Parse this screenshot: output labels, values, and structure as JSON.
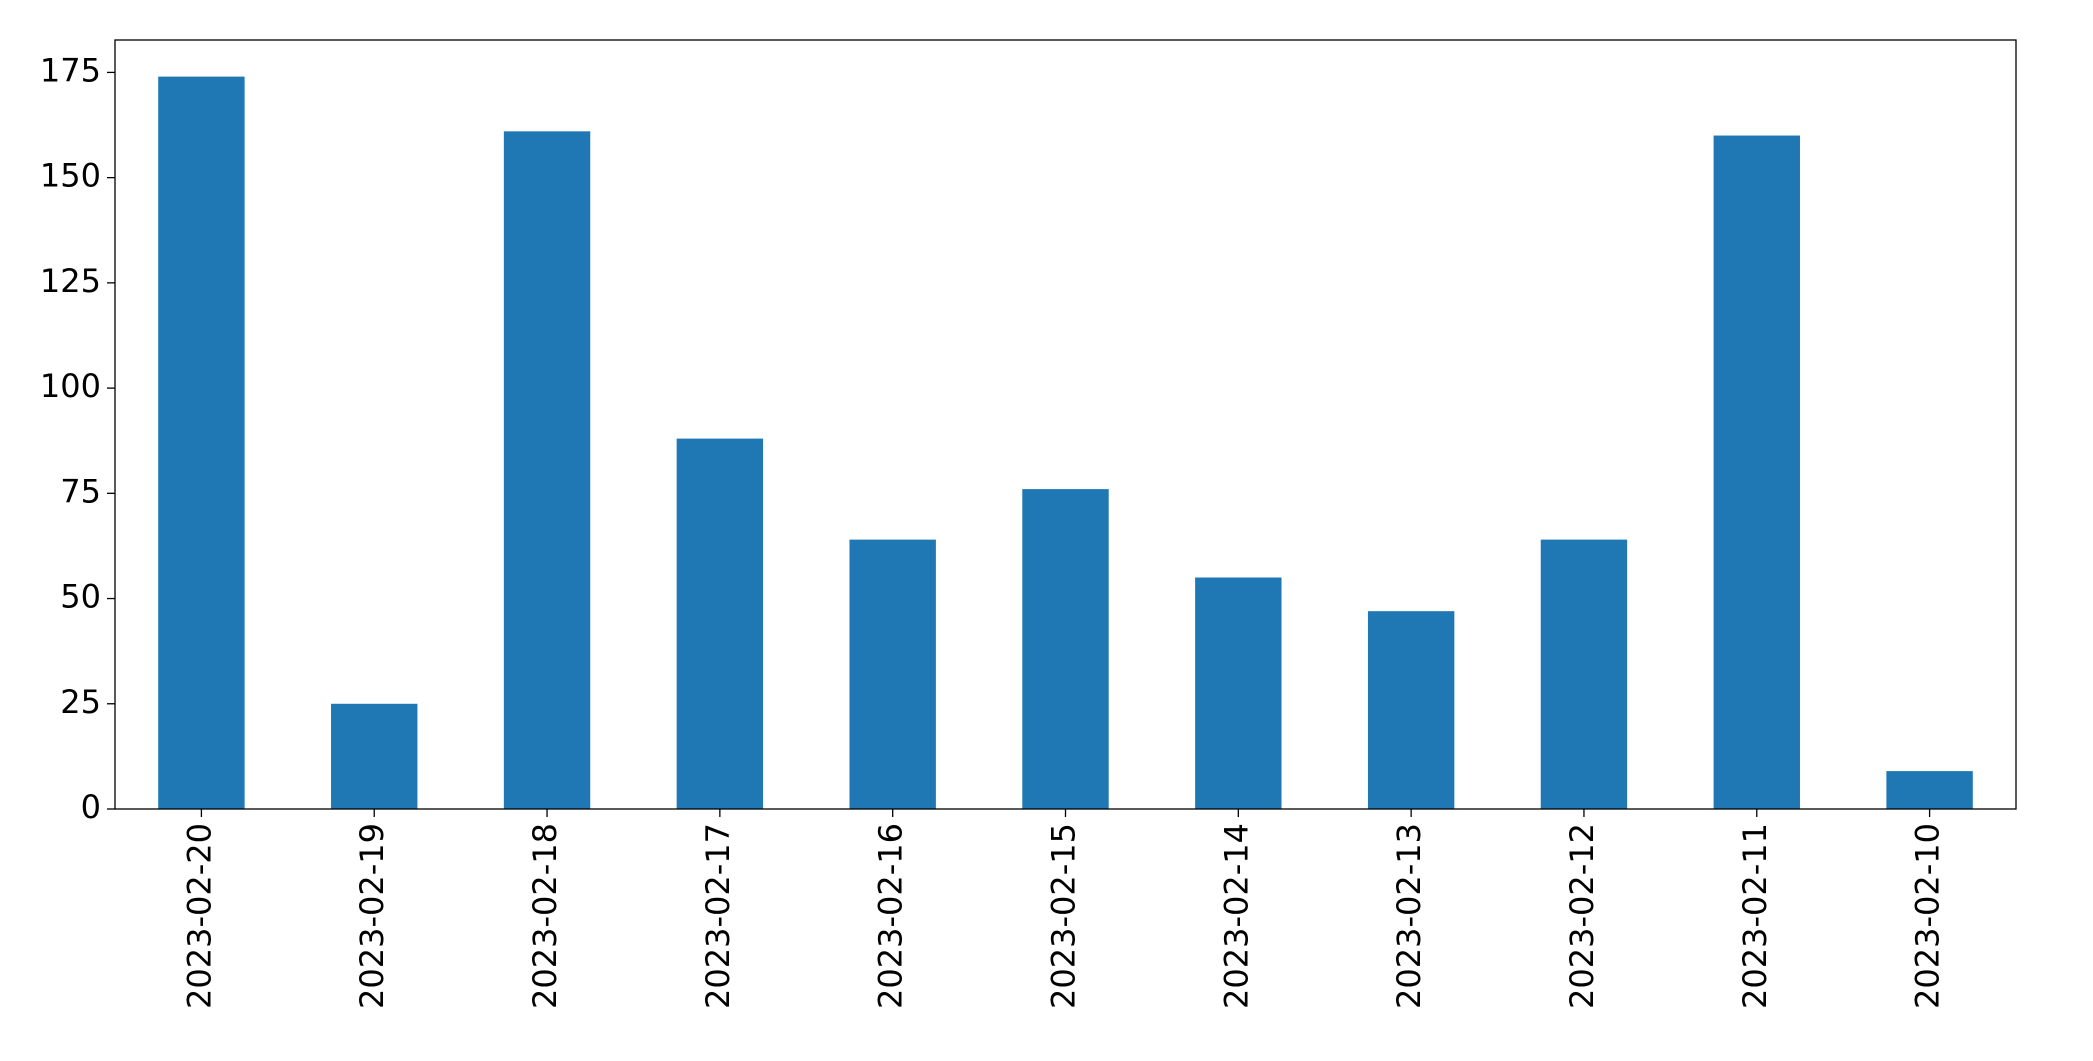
{
  "chart_data": {
    "type": "bar",
    "categories": [
      "2023-02-20",
      "2023-02-19",
      "2023-02-18",
      "2023-02-17",
      "2023-02-16",
      "2023-02-15",
      "2023-02-14",
      "2023-02-13",
      "2023-02-12",
      "2023-02-11",
      "2023-02-10"
    ],
    "values": [
      174,
      25,
      161,
      88,
      64,
      76,
      55,
      47,
      64,
      160,
      9
    ],
    "color": "#1f77b4",
    "ylim": [
      0,
      182.7
    ],
    "yticks": [
      0,
      25,
      50,
      75,
      100,
      125,
      150,
      175
    ],
    "grid": false
  }
}
